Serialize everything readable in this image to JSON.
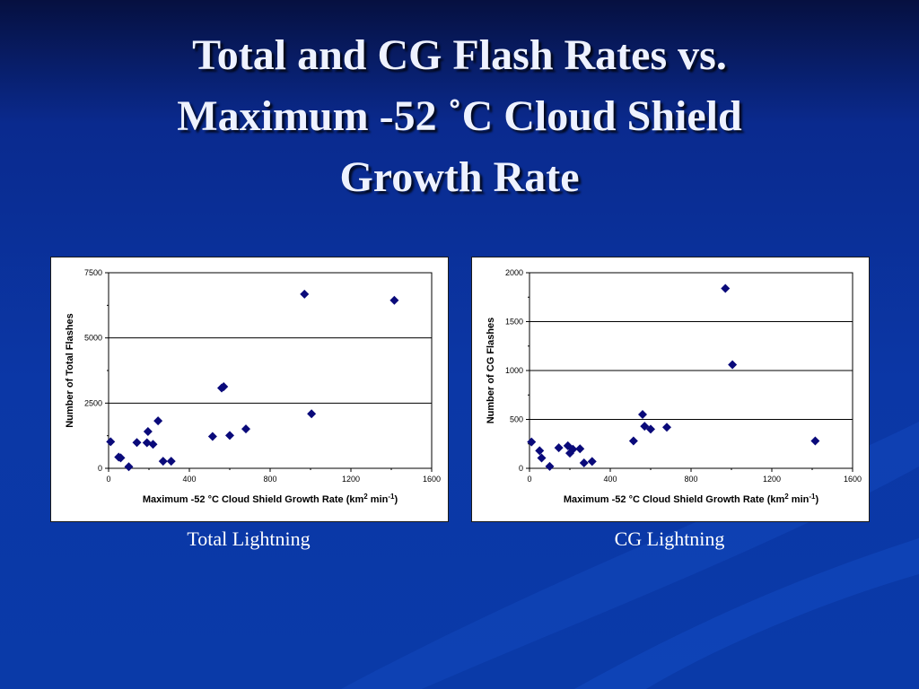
{
  "slide": {
    "title_lines": [
      "Total and CG Flash Rates vs.",
      "Maximum -52 ˚C Cloud Shield",
      "Growth Rate"
    ],
    "captions": [
      "Total Lightning",
      "CG Lightning"
    ]
  },
  "colors": {
    "background": "#0b37a6",
    "marker": "#0a0a7a",
    "panel": "#ffffff",
    "title": "#eef2ff"
  },
  "chart_data": [
    {
      "type": "scatter",
      "xlabel": "Maximum -52 °C Cloud Shield Growth Rate (km2 min-1)",
      "ylabel": "Number of Total Flashes",
      "xlim": [
        0,
        1600
      ],
      "ylim": [
        0,
        7500
      ],
      "xticks": [
        "0",
        "400",
        "800",
        "1200",
        "1600"
      ],
      "yticks": [
        "0",
        "2500",
        "5000",
        "7500"
      ],
      "marker": "diamond",
      "grid": "horizontal",
      "points": [
        [
          10,
          1020
        ],
        [
          50,
          430
        ],
        [
          60,
          400
        ],
        [
          100,
          60
        ],
        [
          140,
          990
        ],
        [
          190,
          980
        ],
        [
          195,
          1410
        ],
        [
          220,
          920
        ],
        [
          245,
          1820
        ],
        [
          270,
          270
        ],
        [
          310,
          270
        ],
        [
          515,
          1220
        ],
        [
          560,
          3080
        ],
        [
          570,
          3130
        ],
        [
          600,
          1260
        ],
        [
          680,
          1510
        ],
        [
          970,
          6680
        ],
        [
          1005,
          2090
        ],
        [
          1415,
          6440
        ]
      ]
    },
    {
      "type": "scatter",
      "xlabel": "Maximum -52 °C Cloud Shield Growth Rate (km2 min-1)",
      "ylabel": "Number of CG Flashes",
      "xlim": [
        0,
        1600
      ],
      "ylim": [
        0,
        2000
      ],
      "xticks": [
        "0",
        "400",
        "800",
        "1200",
        "1600"
      ],
      "yticks": [
        "0",
        "500",
        "1000",
        "1500",
        "2000"
      ],
      "marker": "diamond",
      "grid": "horizontal",
      "points": [
        [
          10,
          270
        ],
        [
          50,
          180
        ],
        [
          60,
          105
        ],
        [
          100,
          20
        ],
        [
          145,
          210
        ],
        [
          190,
          230
        ],
        [
          200,
          155
        ],
        [
          215,
          195
        ],
        [
          250,
          200
        ],
        [
          270,
          55
        ],
        [
          310,
          70
        ],
        [
          515,
          280
        ],
        [
          560,
          550
        ],
        [
          570,
          430
        ],
        [
          600,
          400
        ],
        [
          680,
          420
        ],
        [
          970,
          1840
        ],
        [
          1005,
          1060
        ],
        [
          1415,
          280
        ]
      ]
    }
  ]
}
